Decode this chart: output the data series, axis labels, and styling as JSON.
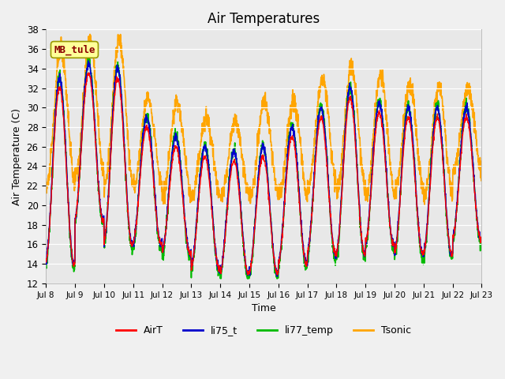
{
  "title": "Air Temperatures",
  "xlabel": "Time",
  "ylabel": "Air Temperature (C)",
  "ylim": [
    12,
    38
  ],
  "yticks": [
    12,
    14,
    16,
    18,
    20,
    22,
    24,
    26,
    28,
    30,
    32,
    34,
    36,
    38
  ],
  "fig_bg": "#f0f0f0",
  "plot_bg": "#e8e8e8",
  "colors": {
    "AirT": "#ff0000",
    "li75_t": "#0000cc",
    "li77_temp": "#00bb00",
    "Tsonic": "#ffa500"
  },
  "annotation": {
    "text": "MB_tule",
    "fontsize": 9,
    "color": "#8b0000",
    "bg": "#ffff99",
    "border_color": "#999900"
  },
  "n_days": 15,
  "start_day": 8,
  "ppd": 144,
  "seed": 7,
  "day_maxes": [
    32,
    33.5,
    33,
    28,
    26,
    25,
    24.5,
    25,
    27,
    29,
    31,
    29.5,
    29,
    29,
    29
  ],
  "day_mins": [
    14,
    18.5,
    16,
    16,
    15,
    13.5,
    13,
    13,
    14,
    15,
    15,
    16,
    15,
    15,
    16.5
  ],
  "tsonic_maxes": [
    36,
    37,
    37,
    31,
    30.5,
    29,
    28.5,
    30.5,
    30.5,
    33,
    34,
    33.5,
    32.5,
    32,
    32
  ],
  "tsonic_mins": [
    22,
    23,
    22,
    22,
    21,
    21,
    21,
    21,
    21,
    22,
    21.5,
    21,
    21.5,
    21,
    23.5
  ]
}
